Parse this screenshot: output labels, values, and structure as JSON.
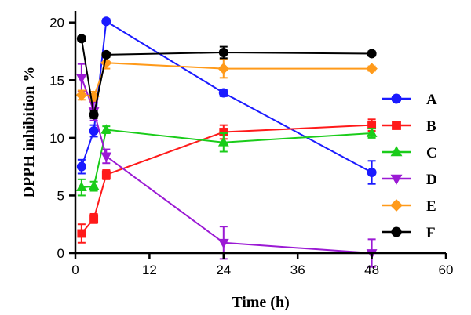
{
  "chart_data": {
    "type": "line",
    "title": "",
    "xlabel": "Time (h)",
    "ylabel": "DPPH inhibition %",
    "xlim": [
      0,
      60
    ],
    "ylim": [
      0,
      21
    ],
    "xticks": [
      0,
      12,
      24,
      36,
      48,
      60
    ],
    "yticks": [
      0,
      5,
      10,
      15,
      20
    ],
    "x": [
      1,
      3,
      5,
      24,
      48
    ],
    "grid": false,
    "legend_position": "right",
    "series": [
      {
        "name": "A",
        "color": "#1a1aff",
        "marker": "circle",
        "values": [
          7.5,
          10.6,
          20.1,
          13.9,
          7.0
        ],
        "errors": [
          0.6,
          0.5,
          0.2,
          0.3,
          1.0
        ]
      },
      {
        "name": "B",
        "color": "#ff1a1a",
        "marker": "square",
        "values": [
          1.7,
          3.0,
          6.8,
          10.5,
          11.1
        ],
        "errors": [
          0.8,
          0.4,
          0.4,
          0.6,
          0.5
        ]
      },
      {
        "name": "C",
        "color": "#1acc1a",
        "marker": "triangle-up",
        "values": [
          5.7,
          5.8,
          10.7,
          9.6,
          10.4
        ],
        "errors": [
          0.7,
          0.4,
          0.3,
          0.8,
          0.4
        ]
      },
      {
        "name": "D",
        "color": "#9b1ad4",
        "marker": "triangle-down",
        "values": [
          15.2,
          12.3,
          8.4,
          0.9,
          0.0
        ],
        "errors": [
          1.2,
          0.8,
          0.6,
          1.4,
          1.2
        ]
      },
      {
        "name": "E",
        "color": "#ff9a1a",
        "marker": "diamond",
        "values": [
          13.7,
          13.6,
          16.5,
          16.0,
          16.0
        ],
        "errors": [
          0.4,
          0.4,
          0.5,
          0.8,
          0.2
        ]
      },
      {
        "name": "F",
        "color": "#000000",
        "marker": "circle",
        "values": [
          18.6,
          12.0,
          17.2,
          17.4,
          17.3
        ],
        "errors": [
          0.2,
          0.3,
          0.2,
          0.5,
          0.2
        ]
      }
    ]
  }
}
